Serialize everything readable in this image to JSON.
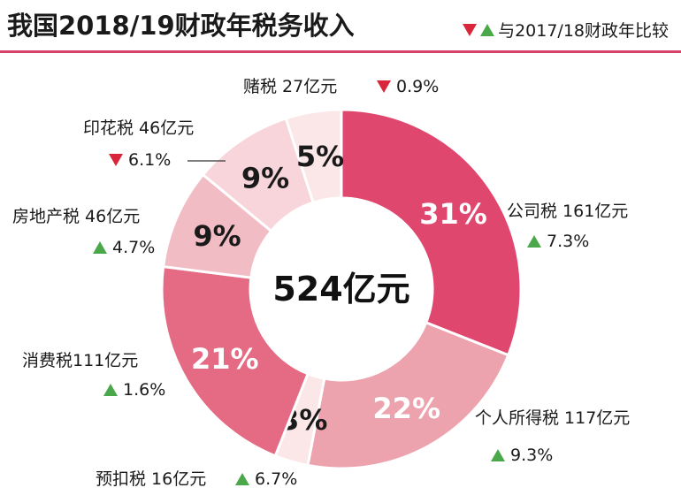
{
  "title": "我国2018/19财政年税务收入",
  "legend_text": "与2017/18财政年比较",
  "colors": {
    "up": "#4aa84a",
    "down": "#d9263a",
    "accent": "#d6426a"
  },
  "chart_data": {
    "type": "pie",
    "style": "donut",
    "center_label": "524亿元",
    "slices": [
      {
        "label": "公司税 161亿元",
        "percent": 31,
        "percent_label": "31%",
        "change": "7.3%",
        "direction": "up",
        "color": "#e0476f",
        "pct_color": "#ffffff"
      },
      {
        "label": "个人所得税 117亿元",
        "percent": 22,
        "percent_label": "22%",
        "change": "9.3%",
        "direction": "up",
        "color": "#eda3ae",
        "pct_color": "#ffffff"
      },
      {
        "label": "预扣税 16亿元",
        "percent": 3,
        "percent_label": "3%",
        "change": "6.7%",
        "direction": "up",
        "color": "#fbe6e8",
        "pct_color": "#1a1a1a"
      },
      {
        "label": "消费税111亿元",
        "percent": 21,
        "percent_label": "21%",
        "change": "1.6%",
        "direction": "up",
        "color": "#e46b83",
        "pct_color": "#ffffff"
      },
      {
        "label": "房地产税 46亿元",
        "percent": 9,
        "percent_label": "9%",
        "change": "4.7%",
        "direction": "up",
        "color": "#f2bcc4",
        "pct_color": "#1a1a1a"
      },
      {
        "label": "印花税 46亿元",
        "percent": 9,
        "percent_label": "9%",
        "change": "6.1%",
        "direction": "down",
        "color": "#f7d5da",
        "pct_color": "#1a1a1a"
      },
      {
        "label": "赌税 27亿元",
        "percent": 5,
        "percent_label": "5%",
        "change": "0.9%",
        "direction": "down",
        "color": "#fbe6e8",
        "pct_color": "#1a1a1a"
      }
    ]
  }
}
